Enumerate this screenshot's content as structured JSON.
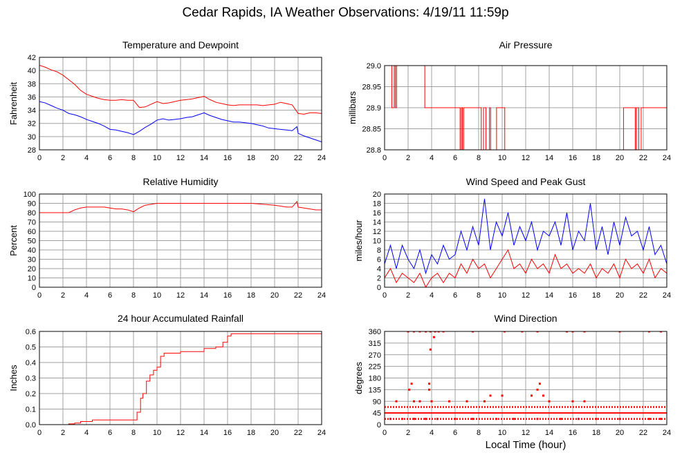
{
  "page": {
    "title": "Cedar Rapids, IA Weather Observations: 4/19/11 11:59p"
  },
  "colors": {
    "series_red": "#ff0000",
    "series_blue": "#0000ff",
    "grid": "#a0a0a0"
  },
  "chart_data": [
    {
      "id": "temp",
      "type": "line",
      "title": "Temperature and Dewpoint",
      "xlabel": "",
      "ylabel": "Fahrenheit",
      "xlim": [
        0,
        24
      ],
      "ylim": [
        28,
        42
      ],
      "xticks": [
        0,
        2,
        4,
        6,
        8,
        10,
        12,
        14,
        16,
        18,
        20,
        22,
        24
      ],
      "yticks": [
        28,
        30,
        32,
        34,
        36,
        38,
        40,
        42
      ],
      "grid": true,
      "series": [
        {
          "color": "#ff0000",
          "style": "line",
          "x": [
            0,
            0.5,
            1,
            1.5,
            2,
            2.5,
            3,
            3.5,
            4,
            4.5,
            5,
            5.5,
            6,
            6.5,
            7,
            7.5,
            8,
            8.5,
            9,
            9.5,
            10,
            10.5,
            11,
            11.5,
            12,
            12.5,
            13,
            13.5,
            14,
            14.5,
            15,
            15.5,
            16,
            16.5,
            17,
            17.5,
            18,
            18.5,
            19,
            19.5,
            20,
            20.5,
            21,
            21.5,
            22,
            22.5,
            23,
            23.5,
            24
          ],
          "y": [
            40.8,
            40.5,
            40.1,
            39.8,
            39.3,
            38.6,
            37.9,
            37,
            36.4,
            36.1,
            35.8,
            35.6,
            35.5,
            35.5,
            35.6,
            35.5,
            35.5,
            34.4,
            34.5,
            34.9,
            35.3,
            35.0,
            35.1,
            35.3,
            35.5,
            35.6,
            35.7,
            35.9,
            36.1,
            35.6,
            35.2,
            35.0,
            34.8,
            34.7,
            34.8,
            34.8,
            34.8,
            34.8,
            34.7,
            34.8,
            34.9,
            35.2,
            35.0,
            34.8,
            33.5,
            33.4,
            33.6,
            33.6,
            33.5
          ]
        },
        {
          "color": "#0000ff",
          "style": "line",
          "x": [
            0,
            0.5,
            1,
            1.5,
            2,
            2.5,
            3,
            3.5,
            4,
            4.5,
            5,
            5.5,
            6,
            6.5,
            7,
            7.5,
            8,
            8.5,
            9,
            9.5,
            10,
            10.5,
            11,
            11.5,
            12,
            12.5,
            13,
            13.5,
            14,
            14.5,
            15,
            15.5,
            16,
            16.5,
            17,
            17.5,
            18,
            18.5,
            19,
            19.5,
            20,
            20.5,
            21,
            21.5,
            21.9,
            22,
            22.5,
            23,
            23.5,
            24
          ],
          "y": [
            35.3,
            35.1,
            34.7,
            34.3,
            34.0,
            33.5,
            33.3,
            33.0,
            32.6,
            32.3,
            32.0,
            31.6,
            31.1,
            31.0,
            30.8,
            30.6,
            30.3,
            30.8,
            31.4,
            31.9,
            32.5,
            32.7,
            32.5,
            32.6,
            32.7,
            32.9,
            33.0,
            33.3,
            33.6,
            33.2,
            32.9,
            32.6,
            32.4,
            32.2,
            32.2,
            32.1,
            32.0,
            31.8,
            31.6,
            31.3,
            31.2,
            31.1,
            31.0,
            30.9,
            31.5,
            30.5,
            30.1,
            29.8,
            29.5,
            29.2
          ]
        }
      ]
    },
    {
      "id": "pressure",
      "type": "line",
      "title": "Air Pressure",
      "xlabel": "",
      "ylabel": "millibars",
      "xlim": [
        0,
        24
      ],
      "ylim": [
        28.8,
        29.0
      ],
      "xticks": [
        0,
        2,
        4,
        6,
        8,
        10,
        12,
        14,
        16,
        18,
        20,
        22,
        24
      ],
      "yticks": [
        28.8,
        28.85,
        28.9,
        28.95,
        29.0
      ],
      "ytick_labels": [
        "28.8",
        "28.85",
        "28.9",
        "28.95",
        "29.0"
      ],
      "grid": true,
      "series": [
        {
          "color": "#ff0000",
          "style": "step",
          "x": [
            0,
            0.6,
            0.62,
            0.8,
            0.82,
            0.9,
            0.92,
            1.0,
            1.02,
            3.4,
            3.42,
            6.4,
            6.42,
            6.5,
            6.52,
            6.6,
            6.62,
            6.7,
            6.72,
            8.2,
            8.22,
            8.4,
            8.42,
            8.6,
            8.62,
            8.9,
            8.92,
            9.0,
            9.02,
            9.5,
            9.52,
            10.2,
            10.22,
            10.4,
            10.42,
            20.3,
            20.32,
            21.3,
            21.32,
            21.4,
            21.42,
            21.6,
            21.62,
            21.8,
            21.82,
            24
          ],
          "y": [
            29.0,
            29.0,
            28.9,
            28.9,
            29.0,
            29.0,
            28.9,
            28.9,
            29.0,
            29.0,
            28.9,
            28.9,
            28.8,
            28.8,
            28.9,
            28.9,
            28.8,
            28.8,
            28.9,
            28.9,
            28.8,
            28.8,
            28.9,
            28.9,
            28.8,
            28.8,
            28.9,
            28.9,
            28.8,
            28.8,
            28.9,
            28.9,
            28.8,
            28.8,
            28.8,
            28.8,
            28.9,
            28.9,
            28.8,
            28.8,
            28.9,
            28.9,
            28.8,
            28.8,
            28.9,
            28.9
          ]
        }
      ]
    },
    {
      "id": "humidity",
      "type": "line",
      "title": "Relative Humidity",
      "xlabel": "",
      "ylabel": "Percent",
      "xlim": [
        0,
        24
      ],
      "ylim": [
        0,
        100
      ],
      "xticks": [
        0,
        2,
        4,
        6,
        8,
        10,
        12,
        14,
        16,
        18,
        20,
        22,
        24
      ],
      "yticks": [
        0,
        10,
        20,
        30,
        40,
        50,
        60,
        70,
        80,
        90,
        100
      ],
      "grid": true,
      "series": [
        {
          "color": "#ff0000",
          "style": "line",
          "x": [
            0,
            0.5,
            1,
            1.5,
            2,
            2.5,
            3,
            3.5,
            4,
            4.5,
            5,
            5.5,
            6,
            6.5,
            7,
            7.5,
            8,
            8.5,
            9,
            9.5,
            10,
            11,
            12,
            13,
            14,
            15,
            16,
            17,
            18,
            19,
            20,
            20.5,
            21,
            21.5,
            21.9,
            22,
            22.5,
            23,
            23.5,
            24
          ],
          "y": [
            80,
            80,
            80,
            80,
            80,
            80,
            83,
            85,
            86,
            86,
            86,
            86,
            85,
            84,
            84,
            83,
            81,
            85,
            88,
            89,
            90,
            90,
            90,
            90,
            90,
            90,
            90,
            90,
            90,
            89,
            88,
            87,
            86,
            86,
            92,
            86,
            85,
            84,
            83,
            83
          ]
        }
      ]
    },
    {
      "id": "wind",
      "type": "line",
      "title": "Wind Speed and Peak Gust",
      "xlabel": "",
      "ylabel": "miles/hour",
      "xlim": [
        0,
        24
      ],
      "ylim": [
        0,
        20
      ],
      "xticks": [
        0,
        2,
        4,
        6,
        8,
        10,
        12,
        14,
        16,
        18,
        20,
        22,
        24
      ],
      "yticks": [
        0,
        2,
        4,
        6,
        8,
        10,
        12,
        14,
        16,
        18,
        20
      ],
      "grid": true,
      "series": [
        {
          "color": "#0000ff",
          "style": "line",
          "x": [
            0,
            0.5,
            1,
            1.5,
            2,
            2.5,
            3,
            3.5,
            4,
            4.5,
            5,
            5.5,
            6,
            6.5,
            7,
            7.5,
            8,
            8.5,
            9,
            9.5,
            10,
            10.5,
            11,
            11.5,
            12,
            12.5,
            13,
            13.5,
            14,
            14.5,
            15,
            15.5,
            16,
            16.5,
            17,
            17.5,
            18,
            18.5,
            19,
            19.5,
            20,
            20.5,
            21,
            21.5,
            22,
            22.5,
            23,
            23.5,
            24
          ],
          "y": [
            5,
            9,
            4,
            9,
            6,
            4,
            8,
            3,
            7,
            5,
            9,
            6,
            7,
            12,
            8,
            13,
            9,
            19,
            8,
            14,
            11,
            16,
            9,
            13,
            10,
            14,
            8,
            12,
            11,
            14,
            9,
            16,
            8,
            12,
            10,
            18,
            8,
            13,
            7,
            14,
            9,
            15,
            11,
            12,
            8,
            13,
            7,
            9,
            5
          ]
        },
        {
          "color": "#ff0000",
          "style": "line",
          "x": [
            0,
            0.5,
            1,
            1.5,
            2,
            2.5,
            3,
            3.5,
            4,
            4.5,
            5,
            5.5,
            6,
            6.5,
            7,
            7.5,
            8,
            8.5,
            9,
            9.5,
            10,
            10.5,
            11,
            11.5,
            12,
            12.5,
            13,
            13.5,
            14,
            14.5,
            15,
            15.5,
            16,
            16.5,
            17,
            17.5,
            18,
            18.5,
            19,
            19.5,
            20,
            20.5,
            21,
            21.5,
            22,
            22.5,
            23,
            23.5,
            24
          ],
          "y": [
            2,
            4,
            1,
            3,
            2,
            1,
            3,
            0,
            2,
            3,
            1,
            3,
            2,
            5,
            3,
            6,
            4,
            5,
            2,
            4,
            6,
            8,
            4,
            5,
            3,
            6,
            4,
            5,
            3,
            7,
            4,
            5,
            3,
            4,
            3,
            5,
            2,
            4,
            3,
            5,
            2,
            6,
            4,
            5,
            3,
            6,
            2,
            4,
            3
          ]
        }
      ]
    },
    {
      "id": "rain",
      "type": "line",
      "title": "24 hour Accumulated Rainfall",
      "xlabel": "",
      "ylabel": "Inches",
      "xlim": [
        0,
        24
      ],
      "ylim": [
        0,
        0.6
      ],
      "xticks": [
        0,
        2,
        4,
        6,
        8,
        10,
        12,
        14,
        16,
        18,
        20,
        22,
        24
      ],
      "yticks": [
        0,
        0.1,
        0.2,
        0.3,
        0.4,
        0.5,
        0.6
      ],
      "ytick_labels": [
        "0.0",
        "0.1",
        "0.2",
        "0.3",
        "0.4",
        "0.5",
        "0.6"
      ],
      "grid": true,
      "series": [
        {
          "color": "#ff0000",
          "style": "step",
          "x": [
            0,
            2.5,
            3.0,
            3.5,
            4.5,
            8.0,
            8.3,
            8.6,
            8.8,
            9.1,
            9.4,
            9.7,
            10.0,
            10.3,
            10.6,
            11.0,
            12.0,
            14.0,
            15.0,
            15.6,
            16.0,
            16.3,
            24
          ],
          "y": [
            0,
            0.005,
            0.01,
            0.02,
            0.03,
            0.03,
            0.08,
            0.17,
            0.2,
            0.28,
            0.32,
            0.35,
            0.37,
            0.44,
            0.46,
            0.46,
            0.47,
            0.49,
            0.5,
            0.53,
            0.57,
            0.585,
            0.585
          ]
        }
      ]
    },
    {
      "id": "direction",
      "type": "scatter",
      "title": "Wind Direction",
      "xlabel": "Local Time (hour)",
      "ylabel": "degrees",
      "xlim": [
        0,
        24
      ],
      "ylim": [
        0,
        360
      ],
      "xticks": [
        0,
        2,
        4,
        6,
        8,
        10,
        12,
        14,
        16,
        18,
        20,
        22,
        24
      ],
      "yticks": [
        0,
        45,
        90,
        135,
        180,
        225,
        270,
        315,
        360
      ],
      "grid": true,
      "series": [
        {
          "color": "#ff0000",
          "style": "points",
          "x": [
            2.0,
            2.5,
            3.0,
            3.5,
            3.9,
            4.3,
            4.6,
            5.0,
            7.5,
            10.2,
            11.7,
            13.0,
            15.5,
            16.0,
            17.0,
            20.0,
            22.5,
            23.5,
            3.9,
            4.2,
            2.3,
            3.8,
            13.2,
            2.1,
            3.8,
            13.0,
            1.0,
            2.5,
            3.0,
            4.0,
            5.5,
            7.0,
            8.5,
            9.0,
            10.0,
            12.5,
            13.5,
            14.0,
            16.0,
            17.0,
            0.5,
            1.5,
            2.5,
            3.5,
            4.5,
            6.0,
            7.5,
            9.5,
            11.0,
            13.0,
            15.0,
            16.5,
            18.0,
            20.0,
            22.5,
            23.5
          ],
          "y": [
            360,
            360,
            360,
            360,
            360,
            360,
            360,
            360,
            360,
            360,
            360,
            360,
            360,
            360,
            360,
            360,
            360,
            360,
            290,
            338,
            158,
            158,
            158,
            135,
            135,
            135,
            90,
            90,
            90,
            90,
            90,
            90,
            90,
            112,
            112,
            112,
            112,
            90,
            90,
            90,
            22,
            22,
            22,
            22,
            22,
            22,
            22,
            22,
            22,
            22,
            22,
            22,
            22,
            22,
            22,
            22
          ]
        },
        {
          "color": "#ff0000",
          "style": "hline",
          "y": 45
        },
        {
          "color": "#ff0000",
          "style": "dashed-band",
          "y_values": [
            22,
            68
          ]
        }
      ]
    }
  ]
}
